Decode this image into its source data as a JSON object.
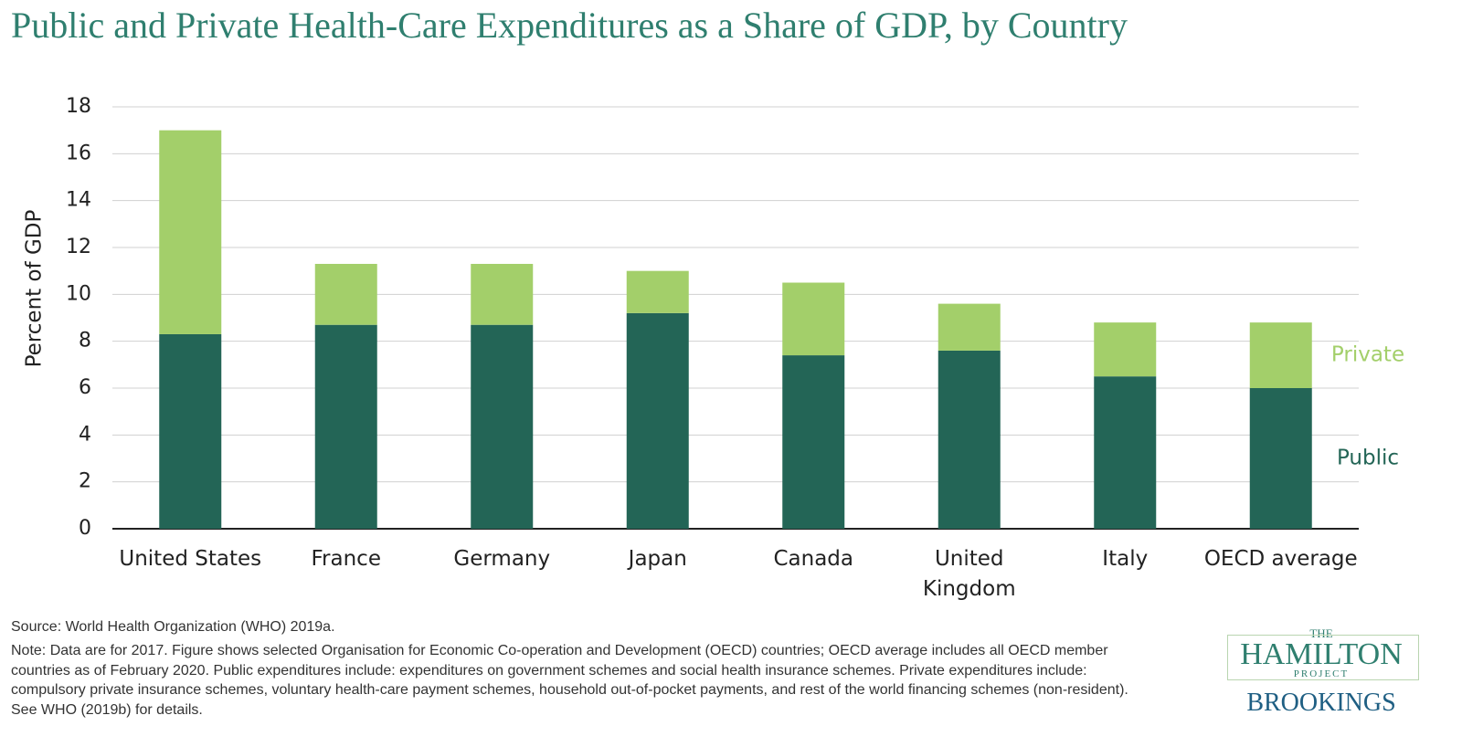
{
  "chart_data": {
    "type": "stacked_bar",
    "title": "Public and Private Health-Care Expenditures as a Share of GDP, by Country",
    "y_label": "Percent of GDP",
    "categories": [
      "United States",
      "France",
      "Germany",
      "Japan",
      "Canada",
      "United Kingdom",
      "Italy",
      "OECD average"
    ],
    "series": [
      {
        "name": "Public",
        "color": "#236556",
        "values": [
          8.3,
          8.7,
          8.7,
          9.2,
          7.4,
          7.6,
          6.5,
          6.0
        ]
      },
      {
        "name": "Private",
        "color": "#a3cf6a",
        "values": [
          8.7,
          2.6,
          2.6,
          1.8,
          3.1,
          2.0,
          2.3,
          2.8
        ]
      }
    ],
    "ylim": [
      0,
      18
    ],
    "yticks": [
      0,
      2,
      4,
      6,
      8,
      10,
      12,
      14,
      16,
      18
    ],
    "grid": true,
    "source": "Source: World Health Organization (WHO) 2019a.",
    "note": "Note: Data are for 2017. Figure shows selected Organisation for Economic Co-operation and Development (OECD) countries; OECD average includes all OECD member countries as of February 2020. Public expenditures include: expenditures on government schemes and social health insurance schemes. Private expenditures include: compulsory private insurance schemes, voluntary health-care payment schemes, household out-of-pocket payments, and rest of the world financing schemes (non-resident). See WHO (2019b) for details."
  },
  "logo": {
    "the": "THE",
    "hamilton": "HAMILTON",
    "project": "PROJECT",
    "brookings": "BROOKINGS"
  }
}
